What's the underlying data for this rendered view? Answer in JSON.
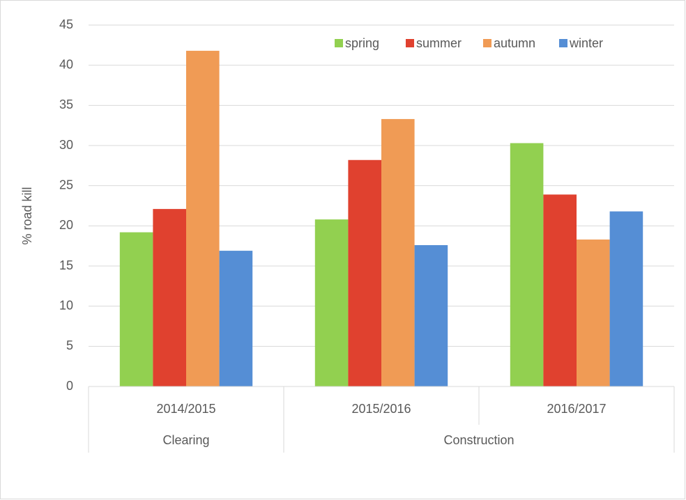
{
  "chart_data": {
    "type": "bar",
    "categories": [
      "2014/2015",
      "2015/2016",
      "2016/2017"
    ],
    "category_groups": [
      {
        "name": "Clearing",
        "count": 1
      },
      {
        "name": "Construction",
        "count": 2
      }
    ],
    "y_label": "% road kill",
    "series": [
      {
        "name": "spring",
        "color": "#92d050",
        "values": [
          19.2,
          20.8,
          30.3
        ]
      },
      {
        "name": "summer",
        "color": "#e0412f",
        "values": [
          22.1,
          28.2,
          23.9
        ]
      },
      {
        "name": "autumn",
        "color": "#f09b55",
        "values": [
          41.8,
          33.3,
          18.3
        ]
      },
      {
        "name": "winter",
        "color": "#558ed5",
        "values": [
          16.9,
          17.6,
          21.8
        ]
      }
    ],
    "ylim": [
      0,
      45
    ],
    "yticks": [
      0,
      5,
      10,
      15,
      20,
      25,
      30,
      35,
      40,
      45
    ],
    "grid": true,
    "legend": "top-right"
  }
}
